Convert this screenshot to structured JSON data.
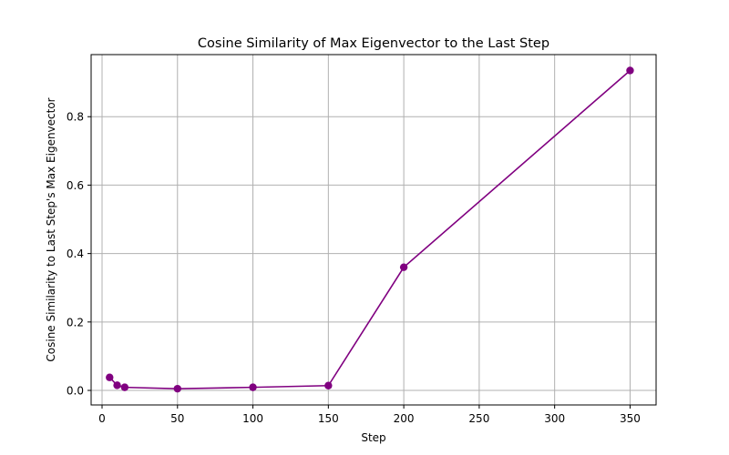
{
  "chart_data": {
    "type": "line",
    "title": "Cosine Similarity of Max Eigenvector to the Last Step",
    "xlabel": "Step",
    "ylabel": "Cosine Similarity to Last Step's Max Eigenvector",
    "x": [
      5,
      10,
      15,
      50,
      100,
      150,
      200,
      350
    ],
    "series": [
      {
        "values": [
          0.038,
          0.015,
          0.009,
          0.005,
          0.009,
          0.014,
          0.36,
          0.935
        ]
      }
    ],
    "xlim": [
      -7.25,
      367.25
    ],
    "ylim": [
      -0.0425,
      0.9815
    ],
    "xticks": [
      0,
      50,
      100,
      150,
      200,
      250,
      300,
      350
    ],
    "yticks": [
      0.0,
      0.2,
      0.4,
      0.6,
      0.8
    ],
    "xtick_labels": [
      "0",
      "50",
      "100",
      "150",
      "200",
      "250",
      "300",
      "350"
    ],
    "ytick_labels": [
      "0.0",
      "0.2",
      "0.4",
      "0.6",
      "0.8"
    ],
    "grid": true,
    "line_color": "#800080",
    "marker": "circle",
    "grid_color": "#b0b0b0"
  }
}
